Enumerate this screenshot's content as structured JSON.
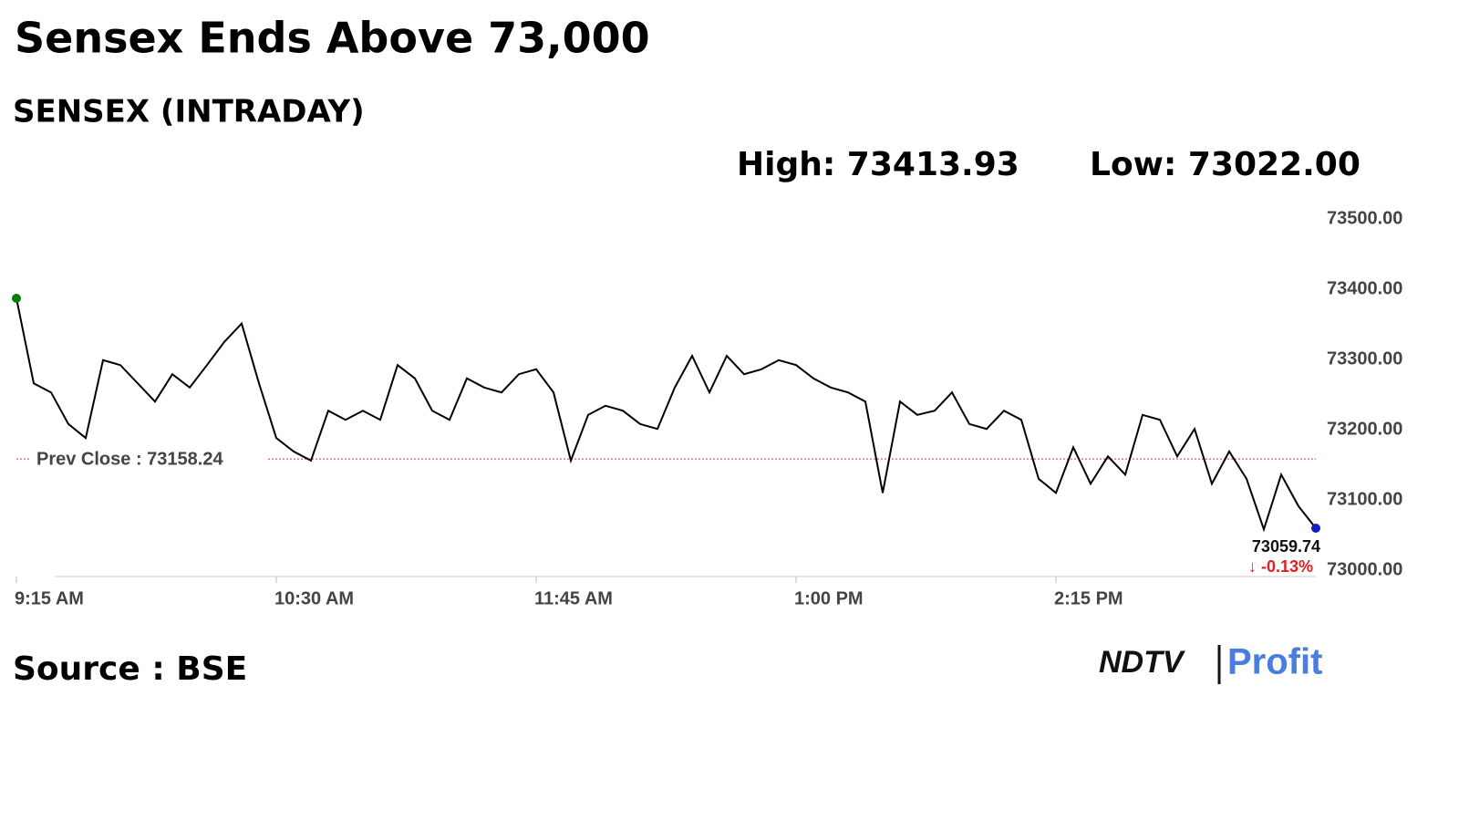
{
  "chart_data": {
    "type": "line",
    "title": "Sensex Ends Above 73,000",
    "subtitle": "SENSEX (INTRADAY)",
    "high_label": "High: 73413.93",
    "low_label": "Low: 73022.00",
    "source": "Source : BSE",
    "logo": [
      "NDTV",
      "Profit"
    ],
    "prev_close": 73158.24,
    "prev_close_label": "Prev Close : 73158.24",
    "last_label": "73059.74",
    "change_label": "↓ -0.13%",
    "xlim": [
      555,
      930
    ],
    "xticks": [
      {
        "value": 555,
        "label": "9:15 AM"
      },
      {
        "value": 630,
        "label": "10:30 AM"
      },
      {
        "value": 705,
        "label": "11:45 AM"
      },
      {
        "value": 780,
        "label": "1:00 PM"
      },
      {
        "value": 855,
        "label": "2:15 PM"
      }
    ],
    "ylim": [
      73000,
      73500
    ],
    "yticks": [
      {
        "value": 73000,
        "label": "73000.00"
      },
      {
        "value": 73100,
        "label": "73100.00"
      },
      {
        "value": 73200,
        "label": "73200.00"
      },
      {
        "value": 73300,
        "label": "73300.00"
      },
      {
        "value": 73400,
        "label": "73400.00"
      },
      {
        "value": 73500,
        "label": "73500.00"
      }
    ],
    "x": [
      555,
      560,
      565,
      570,
      575,
      580,
      585,
      590,
      595,
      600,
      605,
      610,
      615,
      620,
      625,
      630,
      635,
      640,
      645,
      650,
      655,
      660,
      665,
      670,
      675,
      680,
      685,
      690,
      695,
      700,
      705,
      710,
      715,
      720,
      725,
      730,
      735,
      740,
      745,
      750,
      755,
      760,
      765,
      770,
      775,
      780,
      785,
      790,
      795,
      800,
      805,
      810,
      815,
      820,
      825,
      830,
      835,
      840,
      845,
      850,
      855,
      860,
      865,
      870,
      875,
      880,
      885,
      890,
      895,
      900,
      905,
      910,
      915,
      920,
      925,
      930
    ],
    "series": [
      {
        "color": "#000000",
        "values": [
          73387,
          73266,
          73253,
          73208,
          73188,
          73299,
          73292,
          73266,
          73240,
          73279,
          73260,
          73292,
          73325,
          73351,
          73266,
          73188,
          73169,
          73156,
          73227,
          73214,
          73227,
          73214,
          73292,
          73273,
          73227,
          73214,
          73273,
          73260,
          73253,
          73279,
          73286,
          73253,
          73156,
          73221,
          73234,
          73227,
          73208,
          73201,
          73260,
          73305,
          73253,
          73305,
          73279,
          73286,
          73299,
          73292,
          73273,
          73260,
          73253,
          73240,
          73110,
          73240,
          73221,
          73227,
          73253,
          73208,
          73201,
          73227,
          73214,
          73130,
          73110,
          73175,
          73123,
          73162,
          73136,
          73221,
          73214,
          73162,
          73201,
          73123,
          73169,
          73130,
          73058,
          73136,
          73091,
          73059.74
        ]
      }
    ]
  }
}
